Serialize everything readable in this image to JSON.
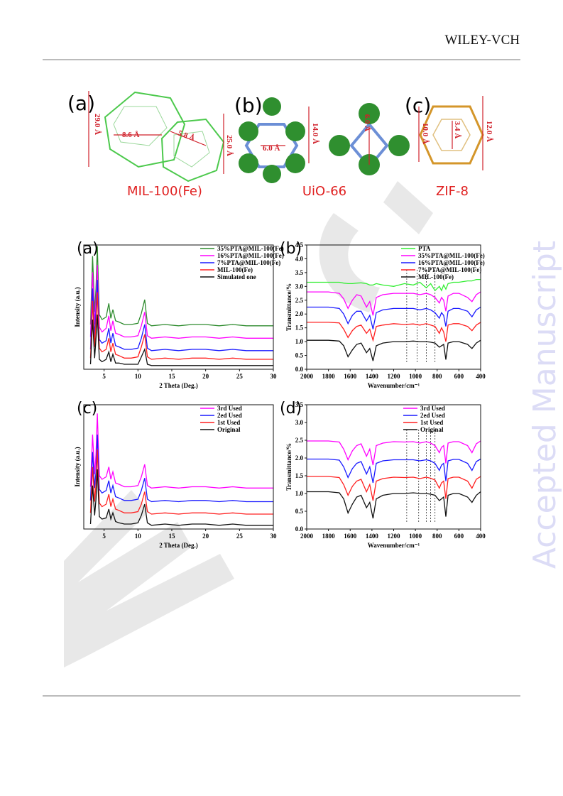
{
  "header": {
    "publisher": "WILEY-VCH"
  },
  "watermark": "Accepted Manuscript",
  "figure1": {
    "panels": [
      {
        "label": "(a)",
        "name": "MIL-100(Fe)",
        "dimensions": [
          "29.0 Å",
          "8.6 Å",
          "5.8 Å",
          "25.0 Å"
        ]
      },
      {
        "label": "(b)",
        "name": "UiO-66",
        "dimensions": [
          "6.0 Å",
          "14.0 Å",
          "6.0 Å"
        ]
      },
      {
        "label": "(c)",
        "name": "ZIF-8",
        "dimensions": [
          "10.0 Å",
          "3.4 Å",
          "12.0 Å"
        ]
      }
    ]
  },
  "chart_data": [
    {
      "type": "line",
      "panel_label": "(a)",
      "x_label": "2 Theta (Deg.)",
      "y_label": "Intensity (a.u.)",
      "xlim": [
        2,
        30
      ],
      "xticks": [
        5,
        10,
        15,
        20,
        25,
        30
      ],
      "ylim": [
        0,
        10
      ],
      "x": [
        3,
        3.3,
        3.6,
        3.8,
        4.0,
        4.3,
        4.7,
        5.3,
        5.7,
        6.0,
        6.3,
        6.7,
        7.2,
        8,
        9,
        10,
        10.5,
        11,
        11.4,
        12,
        14,
        16,
        18,
        20,
        22,
        24,
        26,
        28,
        30
      ],
      "series": [
        {
          "name": "35%PTA@MIL-100(Fe)",
          "color": "#2e8b2e",
          "values": [
            3.6,
            9.1,
            4.6,
            6.5,
            9.9,
            4.4,
            4.0,
            4.2,
            5.3,
            4.1,
            4.8,
            3.9,
            3.8,
            3.6,
            3.6,
            3.7,
            4.5,
            5.6,
            3.7,
            3.5,
            3.6,
            3.5,
            3.6,
            3.6,
            3.5,
            3.6,
            3.5,
            3.5,
            3.5
          ]
        },
        {
          "name": "16%PTA@MIL-100(Fe)",
          "color": "#ff00ff",
          "values": [
            2.6,
            7.8,
            3.6,
            5.5,
            8.4,
            3.4,
            3.0,
            3.3,
            4.3,
            3.1,
            3.9,
            2.9,
            2.8,
            2.6,
            2.6,
            2.7,
            3.5,
            4.6,
            2.7,
            2.5,
            2.6,
            2.5,
            2.6,
            2.6,
            2.5,
            2.6,
            2.5,
            2.5,
            2.5
          ]
        },
        {
          "name": "7%PTA@MIL-100(Fe)",
          "color": "#1a1aff",
          "values": [
            1.6,
            6.5,
            2.6,
            4.6,
            7.2,
            2.4,
            2.1,
            2.3,
            3.3,
            2.1,
            2.9,
            1.9,
            1.8,
            1.6,
            1.6,
            1.7,
            2.5,
            3.6,
            1.7,
            1.5,
            1.6,
            1.5,
            1.6,
            1.6,
            1.5,
            1.6,
            1.5,
            1.5,
            1.5
          ]
        },
        {
          "name": "MIL-100(Fe)",
          "color": "#ff2020",
          "values": [
            0.9,
            5.5,
            1.8,
            3.8,
            6.2,
            1.7,
            1.4,
            1.6,
            2.5,
            1.4,
            2.1,
            1.2,
            1.1,
            0.9,
            0.9,
            1.0,
            1.8,
            2.8,
            1.0,
            0.8,
            0.9,
            0.8,
            0.9,
            0.9,
            0.8,
            0.9,
            0.8,
            0.8,
            0.8
          ]
        },
        {
          "name": "Simulated one",
          "color": "#111111",
          "values": [
            0.4,
            4.0,
            0.9,
            2.5,
            4.4,
            0.8,
            0.6,
            0.8,
            1.4,
            0.6,
            1.2,
            0.5,
            0.5,
            0.4,
            0.4,
            0.4,
            1.0,
            1.6,
            0.4,
            0.3,
            0.3,
            0.3,
            0.3,
            0.3,
            0.3,
            0.3,
            0.3,
            0.3,
            0.3
          ]
        }
      ]
    },
    {
      "type": "line",
      "panel_label": "(b)",
      "x_label": "Wavenumber/cm⁻¹",
      "y_label": "Transmittance/%",
      "xlim": [
        2000,
        400
      ],
      "xticks": [
        2000,
        1800,
        1600,
        1400,
        1200,
        1000,
        800,
        600,
        400
      ],
      "ylim": [
        0,
        4.5
      ],
      "yticks": [
        {
          "value": 0,
          "label": "0.0"
        },
        0.5,
        {
          "value": 1,
          "label": "1.0"
        },
        1.5,
        {
          "value": 2,
          "label": "2.0"
        },
        2.5,
        {
          "value": 3,
          "label": "3.0"
        },
        3.5,
        {
          "value": 4,
          "label": "4.0"
        },
        4.5
      ],
      "reference_lines": [
        1080,
        985,
        900,
        820
      ],
      "x": [
        2000,
        1800,
        1700,
        1660,
        1620,
        1580,
        1540,
        1500,
        1450,
        1420,
        1390,
        1360,
        1300,
        1200,
        1100,
        1020,
        960,
        900,
        860,
        820,
        780,
        760,
        740,
        720,
        700,
        650,
        600,
        520,
        480,
        440,
        400
      ],
      "series": [
        {
          "name": "PTA",
          "color": "#33ee33",
          "values": [
            3.15,
            3.15,
            3.15,
            3.12,
            3.1,
            3.1,
            3.12,
            3.13,
            3.1,
            3.05,
            3.05,
            3.1,
            3.05,
            3.0,
            3.1,
            3.05,
            3.15,
            2.95,
            3.1,
            2.85,
            3.0,
            2.85,
            3.05,
            2.9,
            3.1,
            3.15,
            3.15,
            3.2,
            3.2,
            3.25,
            3.25
          ]
        },
        {
          "name": "35%PTA@MIL-100(Fe)",
          "color": "#ff00ff",
          "values": [
            2.8,
            2.8,
            2.75,
            2.55,
            2.2,
            2.5,
            2.7,
            2.65,
            2.25,
            2.45,
            1.95,
            2.6,
            2.7,
            2.75,
            2.75,
            2.75,
            2.7,
            2.75,
            2.7,
            2.6,
            2.4,
            2.6,
            2.5,
            2.1,
            2.65,
            2.75,
            2.75,
            2.6,
            2.45,
            2.7,
            2.8
          ]
        },
        {
          "name": "16%PTA@MIL-100(Fe)",
          "color": "#1a1aff",
          "values": [
            2.25,
            2.25,
            2.2,
            2.0,
            1.65,
            1.95,
            2.1,
            2.1,
            1.75,
            1.95,
            1.45,
            2.05,
            2.15,
            2.2,
            2.2,
            2.2,
            2.15,
            2.2,
            2.15,
            2.05,
            1.85,
            2.05,
            1.95,
            1.55,
            2.1,
            2.2,
            2.2,
            2.1,
            1.9,
            2.15,
            2.25
          ]
        },
        {
          "name": "7%PTA@MIL-100(Fe)",
          "color": "#ff2020",
          "values": [
            1.7,
            1.7,
            1.68,
            1.45,
            1.15,
            1.4,
            1.55,
            1.6,
            1.3,
            1.45,
            1.05,
            1.55,
            1.6,
            1.65,
            1.62,
            1.64,
            1.6,
            1.65,
            1.6,
            1.55,
            1.3,
            1.5,
            1.35,
            1.0,
            1.6,
            1.65,
            1.65,
            1.55,
            1.4,
            1.6,
            1.7
          ]
        },
        {
          "name": "MIL-100(Fe)",
          "color": "#111111",
          "values": [
            1.05,
            1.05,
            1.02,
            0.85,
            0.45,
            0.7,
            0.9,
            0.95,
            0.6,
            0.75,
            0.3,
            0.85,
            0.95,
            1.0,
            1.0,
            1.02,
            1.0,
            1.0,
            0.98,
            0.95,
            0.8,
            0.85,
            0.9,
            0.35,
            0.95,
            1.0,
            1.0,
            0.9,
            0.75,
            0.95,
            1.05
          ]
        }
      ]
    },
    {
      "type": "line",
      "panel_label": "(c)",
      "x_label": "2 Theta (Deg.)",
      "y_label": "Intensity (a.u.)",
      "xlim": [
        2,
        30
      ],
      "xticks": [
        5,
        10,
        15,
        20,
        25,
        30
      ],
      "ylim": [
        0,
        10
      ],
      "x": [
        3,
        3.3,
        3.6,
        3.8,
        4.0,
        4.3,
        4.7,
        5.3,
        5.7,
        6.0,
        6.3,
        6.7,
        7.2,
        8,
        9,
        10,
        10.5,
        11,
        11.4,
        12,
        14,
        16,
        18,
        20,
        22,
        24,
        26,
        28,
        30
      ],
      "series": [
        {
          "name": "3rd Used",
          "color": "#ff00ff",
          "values": [
            3.4,
            7.6,
            4.4,
            6.0,
            9.3,
            4.3,
            4.0,
            4.2,
            5.0,
            4.0,
            4.6,
            3.7,
            3.6,
            3.4,
            3.4,
            3.5,
            4.2,
            5.2,
            3.5,
            3.3,
            3.4,
            3.3,
            3.4,
            3.4,
            3.3,
            3.4,
            3.3,
            3.3,
            3.3
          ]
        },
        {
          "name": "2ed Used",
          "color": "#1a1aff",
          "values": [
            2.3,
            6.2,
            3.3,
            4.6,
            7.6,
            3.2,
            2.9,
            3.1,
            3.9,
            2.9,
            3.5,
            2.6,
            2.5,
            2.3,
            2.3,
            2.4,
            3.1,
            4.1,
            2.4,
            2.2,
            2.3,
            2.2,
            2.3,
            2.3,
            2.2,
            2.3,
            2.2,
            2.2,
            2.2
          ]
        },
        {
          "name": "1st Used",
          "color": "#ff2020",
          "values": [
            1.3,
            5.0,
            2.2,
            3.6,
            6.4,
            2.1,
            1.8,
            2.0,
            2.8,
            1.8,
            2.4,
            1.6,
            1.5,
            1.3,
            1.3,
            1.4,
            2.0,
            3.0,
            1.4,
            1.2,
            1.3,
            1.2,
            1.3,
            1.3,
            1.2,
            1.3,
            1.2,
            1.2,
            1.2
          ]
        },
        {
          "name": "Original",
          "color": "#111111",
          "values": [
            0.4,
            3.5,
            1.1,
            2.4,
            4.8,
            1.0,
            0.8,
            0.9,
            1.6,
            0.8,
            1.3,
            0.6,
            0.5,
            0.4,
            0.4,
            0.5,
            1.1,
            2.0,
            0.5,
            0.3,
            0.4,
            0.3,
            0.4,
            0.4,
            0.3,
            0.4,
            0.3,
            0.3,
            0.3
          ]
        }
      ]
    },
    {
      "type": "line",
      "panel_label": "(d)",
      "x_label": "Wavenumber/cm⁻¹",
      "y_label": "Transmittance/%",
      "xlim": [
        2000,
        400
      ],
      "xticks": [
        2000,
        1800,
        1600,
        1400,
        1200,
        1000,
        800,
        600,
        400
      ],
      "ylim": [
        0,
        3.5
      ],
      "yticks": [
        {
          "value": 0,
          "label": "0.0"
        },
        0.5,
        {
          "value": 1,
          "label": "1.0"
        },
        1.5,
        {
          "value": 2,
          "label": "2.0"
        },
        2.5,
        {
          "value": 3,
          "label": "3.0"
        },
        3.5
      ],
      "reference_lines": [
        1080,
        970,
        900,
        860,
        820
      ],
      "x": [
        2000,
        1800,
        1700,
        1660,
        1620,
        1580,
        1540,
        1500,
        1450,
        1420,
        1390,
        1360,
        1300,
        1200,
        1100,
        1020,
        960,
        900,
        860,
        820,
        780,
        760,
        740,
        720,
        700,
        650,
        600,
        520,
        480,
        440,
        400
      ],
      "series": [
        {
          "name": "3rd Used",
          "color": "#ff00ff",
          "values": [
            2.48,
            2.48,
            2.45,
            2.25,
            1.95,
            2.2,
            2.35,
            2.4,
            2.05,
            2.25,
            1.8,
            2.35,
            2.42,
            2.46,
            2.45,
            2.46,
            2.42,
            2.46,
            2.42,
            2.35,
            2.15,
            2.3,
            2.35,
            1.85,
            2.42,
            2.46,
            2.46,
            2.35,
            2.15,
            2.4,
            2.48
          ]
        },
        {
          "name": "2ed Used",
          "color": "#1a1aff",
          "values": [
            1.97,
            1.97,
            1.94,
            1.75,
            1.45,
            1.7,
            1.85,
            1.9,
            1.55,
            1.75,
            1.3,
            1.85,
            1.92,
            1.95,
            1.95,
            1.95,
            1.92,
            1.95,
            1.92,
            1.85,
            1.65,
            1.8,
            1.85,
            1.35,
            1.92,
            1.96,
            1.96,
            1.85,
            1.65,
            1.9,
            1.97
          ]
        },
        {
          "name": "1st Used",
          "color": "#ff2020",
          "values": [
            1.48,
            1.48,
            1.45,
            1.25,
            0.95,
            1.2,
            1.35,
            1.4,
            1.05,
            1.25,
            0.8,
            1.35,
            1.42,
            1.46,
            1.45,
            1.46,
            1.42,
            1.46,
            1.43,
            1.38,
            1.15,
            1.3,
            1.35,
            0.85,
            1.42,
            1.46,
            1.46,
            1.35,
            1.15,
            1.4,
            1.48
          ]
        },
        {
          "name": "Original",
          "color": "#111111",
          "values": [
            1.05,
            1.05,
            1.02,
            0.85,
            0.45,
            0.7,
            0.9,
            0.95,
            0.6,
            0.75,
            0.3,
            0.85,
            0.95,
            1.0,
            1.0,
            1.02,
            1.0,
            1.0,
            0.98,
            0.95,
            0.8,
            0.85,
            0.9,
            0.35,
            0.95,
            1.0,
            1.0,
            0.9,
            0.75,
            0.95,
            1.05
          ]
        }
      ]
    }
  ]
}
